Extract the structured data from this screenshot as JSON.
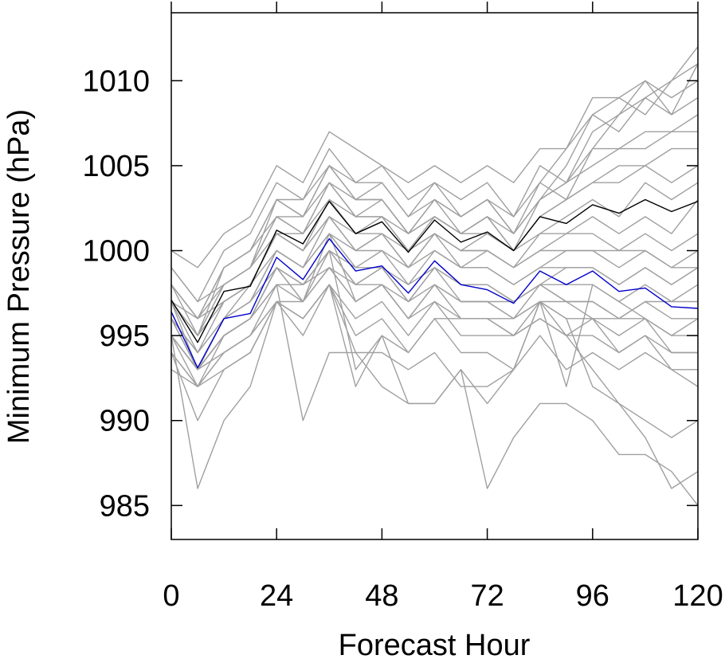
{
  "chart_data": {
    "type": "line",
    "xlabel": "Forecast Hour",
    "ylabel": "Minimum Pressure (hPa)",
    "xlim": [
      0,
      120
    ],
    "ylim": [
      983,
      1014
    ],
    "x_ticks": [
      "0",
      "24",
      "48",
      "72",
      "96",
      "120"
    ],
    "x_tick_values": [
      0,
      24,
      48,
      72,
      96,
      120
    ],
    "y_ticks": [
      "985",
      "990",
      "995",
      "1000",
      "1005",
      "1010"
    ],
    "y_tick_values": [
      985,
      990,
      995,
      1000,
      1005,
      1010
    ],
    "grid": false,
    "legend": "none",
    "x": [
      0,
      6,
      12,
      18,
      24,
      30,
      36,
      42,
      48,
      54,
      60,
      66,
      72,
      78,
      84,
      90,
      96,
      102,
      108,
      114,
      120
    ],
    "colors": {
      "member": "#a0a0a0",
      "mean": "#000000",
      "blue": "#0000cc",
      "axis": "#000000"
    },
    "series": [
      {
        "role": "mean",
        "color": "#000000",
        "values": [
          997.1,
          994.6,
          997.6,
          997.9,
          1001.2,
          1000.4,
          1002.9,
          1001.0,
          1001.7,
          999.9,
          1001.8,
          1000.5,
          1001.1,
          1000.0,
          1002.0,
          1001.6,
          1002.7,
          1002.2,
          1003.0,
          1002.3,
          1002.9
        ]
      },
      {
        "role": "highlight",
        "color": "#0000cc",
        "values": [
          996.4,
          993.1,
          996.0,
          996.3,
          999.6,
          998.3,
          1000.7,
          998.8,
          999.1,
          997.5,
          999.4,
          998.0,
          997.7,
          996.9,
          998.8,
          998.0,
          998.8,
          997.6,
          997.8,
          996.7,
          996.6
        ]
      },
      {
        "role": "member",
        "values": [
          998,
          996,
          999,
          1000,
          1003,
          1002,
          1005,
          1003,
          1003,
          1001,
          1002,
          1001,
          1002,
          1001,
          1003,
          1004,
          1006,
          1008,
          1009,
          1010,
          1012
        ]
      },
      {
        "role": "member",
        "values": [
          997,
          995,
          998,
          999,
          1002,
          1001,
          1004,
          1002,
          1003,
          1001,
          1003,
          1001,
          1002,
          1000,
          1003,
          1005,
          1008,
          1009,
          1008,
          1010,
          1011
        ]
      },
      {
        "role": "member",
        "values": [
          999,
          997,
          1000,
          1001,
          1004,
          1003,
          1006,
          1004,
          1005,
          1003,
          1004,
          1002,
          1003,
          1002,
          1004,
          1006,
          1009,
          1009,
          1010,
          1008,
          1011
        ]
      },
      {
        "role": "member",
        "values": [
          998,
          996,
          999,
          1000,
          1003,
          1003,
          1005,
          1004,
          1004,
          1002,
          1004,
          1003,
          1004,
          1002,
          1005,
          1004,
          1007,
          1008,
          1010,
          1009,
          1010
        ]
      },
      {
        "role": "member",
        "values": [
          1000,
          999,
          1001,
          1002,
          1005,
          1004,
          1007,
          1006,
          1005,
          1004,
          1005,
          1004,
          1005,
          1004,
          1006,
          1006,
          1008,
          1007,
          1009,
          1008,
          1009
        ]
      },
      {
        "role": "member",
        "values": [
          997,
          996,
          998,
          999,
          1003,
          1002,
          1004,
          1003,
          1004,
          1002,
          1003,
          1002,
          1003,
          1001,
          1003,
          1004,
          1005,
          1006,
          1007,
          1007,
          1008
        ]
      },
      {
        "role": "member",
        "values": [
          998,
          995,
          999,
          1000,
          1002,
          1002,
          1005,
          1003,
          1003,
          1001,
          1003,
          1002,
          1003,
          1001,
          1004,
          1003,
          1006,
          1006,
          1006,
          1007,
          1007
        ]
      },
      {
        "role": "member",
        "values": [
          996,
          994,
          997,
          998,
          1001,
          1000,
          1003,
          1002,
          1002,
          1000,
          1002,
          1001,
          1001,
          1000,
          1002,
          1003,
          1004,
          1005,
          1005,
          1006,
          1006
        ]
      },
      {
        "role": "member",
        "values": [
          997,
          995,
          998,
          999,
          1002,
          1001,
          1004,
          1002,
          1002,
          1001,
          1002,
          1001,
          1002,
          1000,
          1002,
          1003,
          1004,
          1004,
          1005,
          1004,
          1005
        ]
      },
      {
        "role": "member",
        "values": [
          996,
          994,
          996,
          998,
          1001,
          1001,
          1003,
          1001,
          1002,
          1000,
          1001,
          1000,
          1001,
          1000,
          1001,
          1002,
          1003,
          1002,
          1004,
          1003,
          1004
        ]
      },
      {
        "role": "member",
        "values": [
          995,
          993,
          996,
          997,
          1000,
          999,
          1002,
          1000,
          1001,
          999,
          1001,
          999,
          1000,
          999,
          1001,
          1001,
          1002,
          1001,
          1002,
          1001,
          1003
        ]
      },
      {
        "role": "member",
        "values": [
          997,
          995,
          997,
          998,
          1001,
          1000,
          1002,
          1001,
          1001,
          1000,
          1001,
          1000,
          1000,
          999,
          1000,
          1001,
          1001,
          1000,
          1001,
          1000,
          1001
        ]
      },
      {
        "role": "member",
        "values": [
          996,
          993,
          996,
          997,
          1000,
          999,
          1001,
          999,
          1000,
          998,
          1000,
          999,
          999,
          998,
          999,
          1000,
          1000,
          999,
          1000,
          999,
          1000
        ]
      },
      {
        "role": "member",
        "values": [
          995,
          993,
          995,
          996,
          999,
          998,
          1000,
          999,
          999,
          998,
          999,
          998,
          998,
          997,
          998,
          999,
          999,
          998,
          999,
          998,
          999
        ]
      },
      {
        "role": "member",
        "values": [
          994,
          992,
          995,
          996,
          998,
          998,
          999,
          998,
          998,
          997,
          999,
          998,
          998,
          997,
          998,
          998,
          998,
          997,
          998,
          997,
          998
        ]
      },
      {
        "role": "member",
        "values": [
          996,
          993,
          995,
          996,
          999,
          997,
          1000,
          998,
          999,
          997,
          998,
          997,
          997,
          996,
          998,
          997,
          997,
          996,
          997,
          996,
          996
        ]
      },
      {
        "role": "member",
        "values": [
          995,
          992,
          994,
          995,
          998,
          997,
          999,
          997,
          998,
          996,
          997,
          996,
          996,
          996,
          997,
          996,
          996,
          995,
          996,
          995,
          995
        ]
      },
      {
        "role": "member",
        "values": [
          994,
          992,
          994,
          995,
          997,
          996,
          998,
          996,
          997,
          995,
          997,
          995,
          995,
          995,
          996,
          995,
          995,
          994,
          995,
          994,
          994
        ]
      },
      {
        "role": "member",
        "values": [
          993,
          992,
          993,
          994,
          997,
          995,
          998,
          995,
          996,
          994,
          996,
          994,
          994,
          993,
          995,
          993,
          994,
          993,
          994,
          993,
          993
        ]
      },
      {
        "role": "member",
        "values": [
          996,
          993,
          995,
          996,
          999,
          997,
          1001,
          997,
          998,
          996,
          998,
          996,
          996,
          995,
          997,
          995,
          996,
          994,
          995,
          993,
          992
        ]
      },
      {
        "role": "member",
        "values": [
          997,
          994,
          996,
          997,
          999,
          998,
          1000,
          998,
          999,
          997,
          999,
          997,
          997,
          997,
          998,
          997,
          997,
          996,
          997,
          997,
          997
        ]
      },
      {
        "role": "member",
        "values": [
          998,
          996,
          997,
          998,
          1000,
          999,
          1001,
          1000,
          1000,
          999,
          1000,
          999,
          999,
          998,
          999,
          999,
          999,
          998,
          999,
          998,
          999
        ]
      },
      {
        "role": "member",
        "values": [
          995,
          993,
          994,
          995,
          997,
          997,
          999,
          997,
          998,
          996,
          998,
          997,
          997,
          996,
          997,
          997,
          996,
          996,
          996,
          995,
          996
        ]
      },
      {
        "role": "member",
        "values": [
          999,
          997,
          998,
          999,
          1001,
          1000,
          1002,
          1000,
          1001,
          999,
          1001,
          1000,
          1000,
          999,
          1000,
          1000,
          1000,
          1000,
          1000,
          999,
          999
        ]
      },
      {
        "role": "member",
        "values": [
          994,
          990,
          993,
          994,
          997,
          996,
          998,
          994,
          994,
          993,
          994,
          992,
          992,
          993,
          997,
          992,
          998,
          997,
          996,
          994,
          994
        ]
      },
      {
        "role": "member",
        "values": [
          995,
          993,
          995,
          996,
          998,
          990,
          994,
          994,
          992,
          991,
          991,
          993,
          991,
          993,
          997,
          996,
          992,
          991,
          990,
          989,
          990
        ]
      },
      {
        "role": "member",
        "values": [
          995,
          986,
          990,
          992,
          997,
          996,
          998,
          992,
          995,
          991,
          991,
          993,
          986,
          989,
          991,
          991,
          990,
          988,
          988,
          987,
          985
        ]
      },
      {
        "role": "member",
        "values": [
          997,
          993,
          995,
          996,
          999,
          998,
          1000,
          993,
          995,
          994,
          996,
          996,
          996,
          995,
          996,
          995,
          993,
          991,
          989,
          986,
          987
        ]
      }
    ]
  }
}
